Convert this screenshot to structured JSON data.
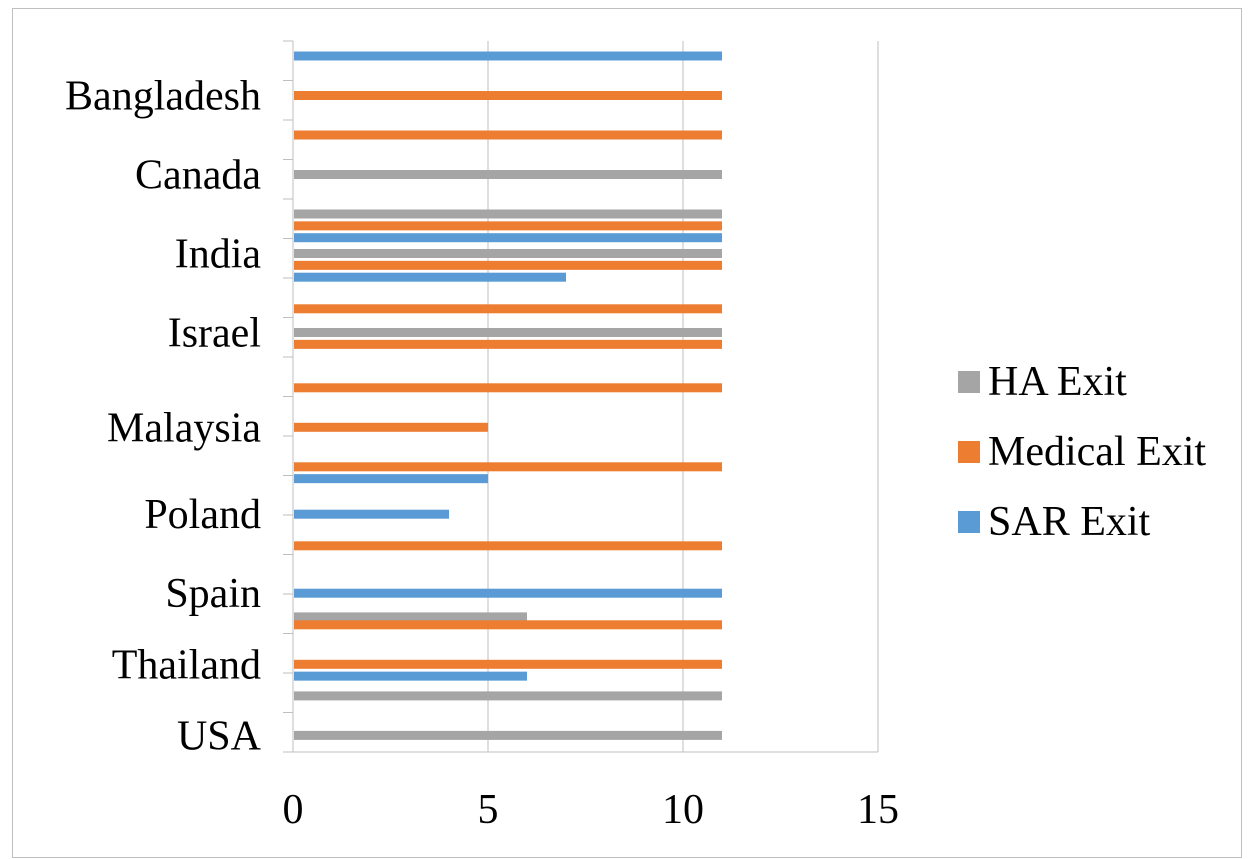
{
  "chart_data": {
    "type": "bar",
    "orientation": "horizontal",
    "title": "",
    "xlabel": "",
    "ylabel": "",
    "xlim": [
      0,
      15
    ],
    "x_ticks": [
      "0",
      "5",
      "10",
      "15"
    ],
    "grid": "vertical",
    "legend_position": "right",
    "rows": [
      {
        "slot": 1,
        "series": "SAR Exit",
        "value": 11
      },
      {
        "slot": 2,
        "series": "Medical Exit",
        "value": 11,
        "label": "Bangladesh"
      },
      {
        "slot": 3,
        "series": "Medical Exit",
        "value": 11
      },
      {
        "slot": 4,
        "series": "HA Exit",
        "value": 11,
        "label": "Canada"
      },
      {
        "slot": 5,
        "series": "HA Exit",
        "value": 11
      },
      {
        "slot": 5.3,
        "series": "Medical Exit",
        "value": 11
      },
      {
        "slot": 5.6,
        "series": "SAR Exit",
        "value": 11
      },
      {
        "slot": 6,
        "series": "HA Exit",
        "value": 11,
        "label": "India"
      },
      {
        "slot": 6.3,
        "series": "Medical Exit",
        "value": 11
      },
      {
        "slot": 6.6,
        "series": "SAR Exit",
        "value": 7
      },
      {
        "slot": 7.4,
        "series": "Medical Exit",
        "value": 11
      },
      {
        "slot": 8,
        "series": "HA Exit",
        "value": 11,
        "label": "Israel"
      },
      {
        "slot": 8.3,
        "series": "Medical Exit",
        "value": 11
      },
      {
        "slot": 9.4,
        "series": "Medical Exit",
        "value": 11
      },
      {
        "slot": 10.4,
        "series": "Medical Exit",
        "value": 5,
        "label": "Malaysia"
      },
      {
        "slot": 11.4,
        "series": "Medical Exit",
        "value": 11
      },
      {
        "slot": 11.7,
        "series": "SAR Exit",
        "value": 5
      },
      {
        "slot": 12.6,
        "series": "SAR Exit",
        "value": 4,
        "label": "Poland"
      },
      {
        "slot": 13.4,
        "series": "Medical Exit",
        "value": 11
      },
      {
        "slot": 14.6,
        "series": "SAR Exit",
        "value": 11,
        "label": "Spain"
      },
      {
        "slot": 15.2,
        "series": "HA Exit",
        "value": 6
      },
      {
        "slot": 15.4,
        "series": "Medical Exit",
        "value": 11
      },
      {
        "slot": 16.4,
        "series": "Medical Exit",
        "value": 11,
        "label": "Thailand"
      },
      {
        "slot": 16.7,
        "series": "SAR Exit",
        "value": 6
      },
      {
        "slot": 17.2,
        "series": "HA Exit",
        "value": 11
      },
      {
        "slot": 18.2,
        "series": "HA Exit",
        "value": 11,
        "label": "USA"
      }
    ],
    "categories": [
      "Bangladesh",
      "Canada",
      "India",
      "Israel",
      "Malaysia",
      "Poland",
      "Spain",
      "Thailand",
      "USA"
    ],
    "series": [
      {
        "name": "HA Exit",
        "color": "#a5a5a5"
      },
      {
        "name": "Medical Exit",
        "color": "#ed7d31"
      },
      {
        "name": "SAR Exit",
        "color": "#5b9bd5"
      }
    ]
  }
}
